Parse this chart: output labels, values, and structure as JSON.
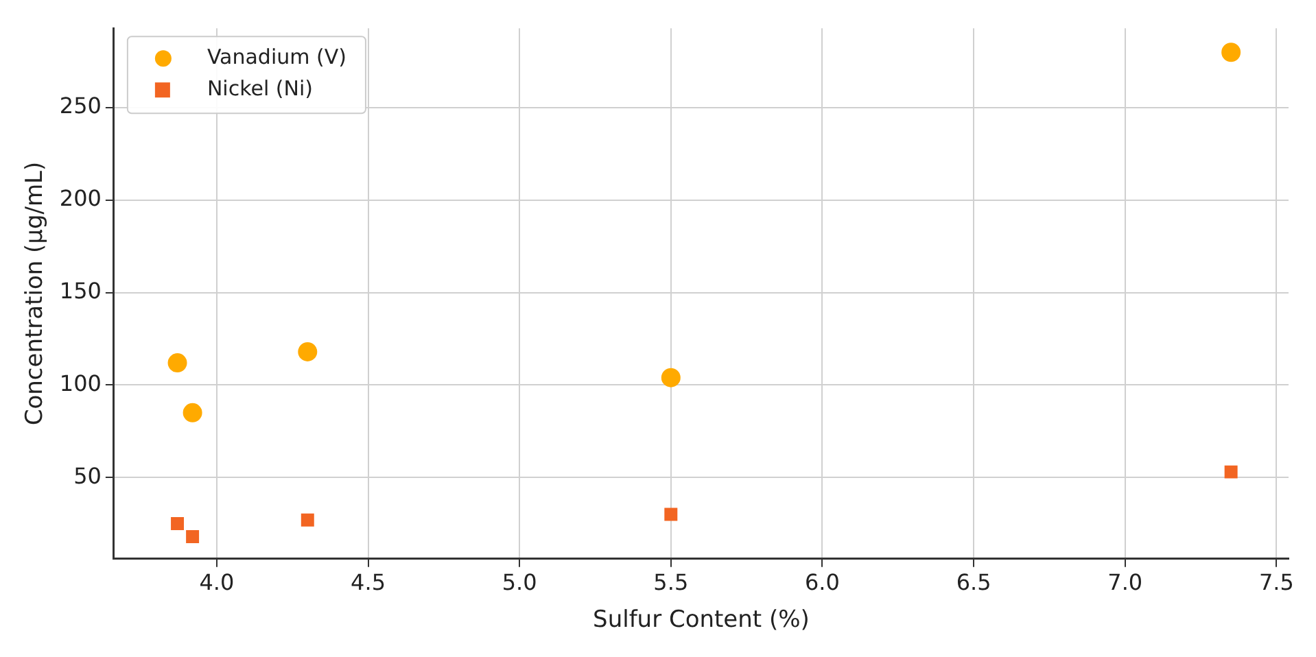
{
  "chart_data": {
    "type": "scatter",
    "xlabel": "Sulfur Content (%)",
    "ylabel": "Concentration (µg/mL)",
    "series": [
      {
        "name": "Vanadium (V)",
        "color": "#ffaa00",
        "marker": "circle",
        "x": [
          3.87,
          3.92,
          4.3,
          5.5,
          7.35
        ],
        "values": [
          112,
          85,
          118,
          104,
          280
        ]
      },
      {
        "name": "Nickel (Ni)",
        "color": "#f26522",
        "marker": "square",
        "x": [
          3.87,
          3.92,
          4.3,
          5.5,
          7.35
        ],
        "values": [
          25,
          18,
          27,
          30,
          53
        ]
      }
    ],
    "xlim": [
      3.66,
      7.54
    ],
    "xticks": [
      {
        "value": 4,
        "label": "4.0"
      },
      {
        "value": 4.5,
        "label": "4.5"
      },
      {
        "value": 5,
        "label": "5.0"
      },
      {
        "value": 5.5,
        "label": "5.5"
      },
      {
        "value": 6,
        "label": "6.0"
      },
      {
        "value": 6.5,
        "label": "6.5"
      },
      {
        "value": 7,
        "label": "7.0"
      },
      {
        "value": 7.5,
        "label": "7.5"
      }
    ],
    "ylim": [
      6,
      293
    ],
    "yticks": [
      50,
      100,
      150,
      200,
      250
    ],
    "grid": true,
    "legend": "top left"
  }
}
